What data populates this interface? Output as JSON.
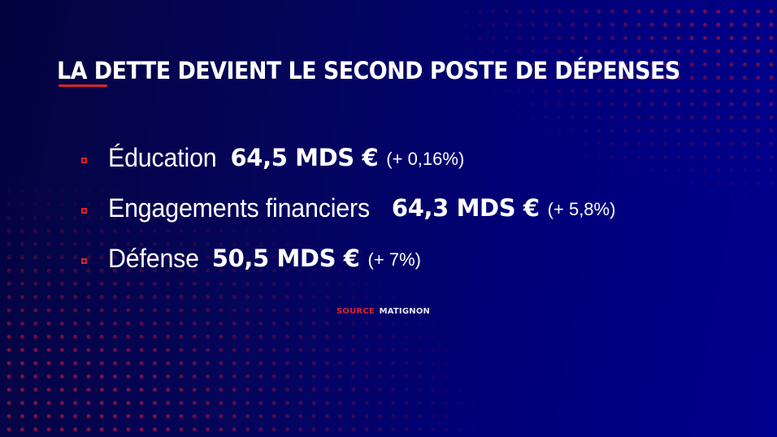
{
  "colors": {
    "accent_red": "#d8232a",
    "text": "#ffffff",
    "background_left": "#03033f",
    "background_right": "#00008e"
  },
  "title": "LA DETTE DEVIENT LE SECOND POSTE DE DÉPENSES",
  "bullet_icon": "hollow-square",
  "items": [
    {
      "label": "Éducation",
      "amount": "64,5 MDS €",
      "change": "(+ 0,16%)"
    },
    {
      "label": "Engagements financiers",
      "amount": "64,3 MDS €",
      "change": "(+ 5,8%)"
    },
    {
      "label": "Défense",
      "amount": "50,5 MDS €",
      "change": "(+ 7%)"
    }
  ],
  "source": {
    "label": "SOURCE",
    "name": "MATIGNON"
  }
}
